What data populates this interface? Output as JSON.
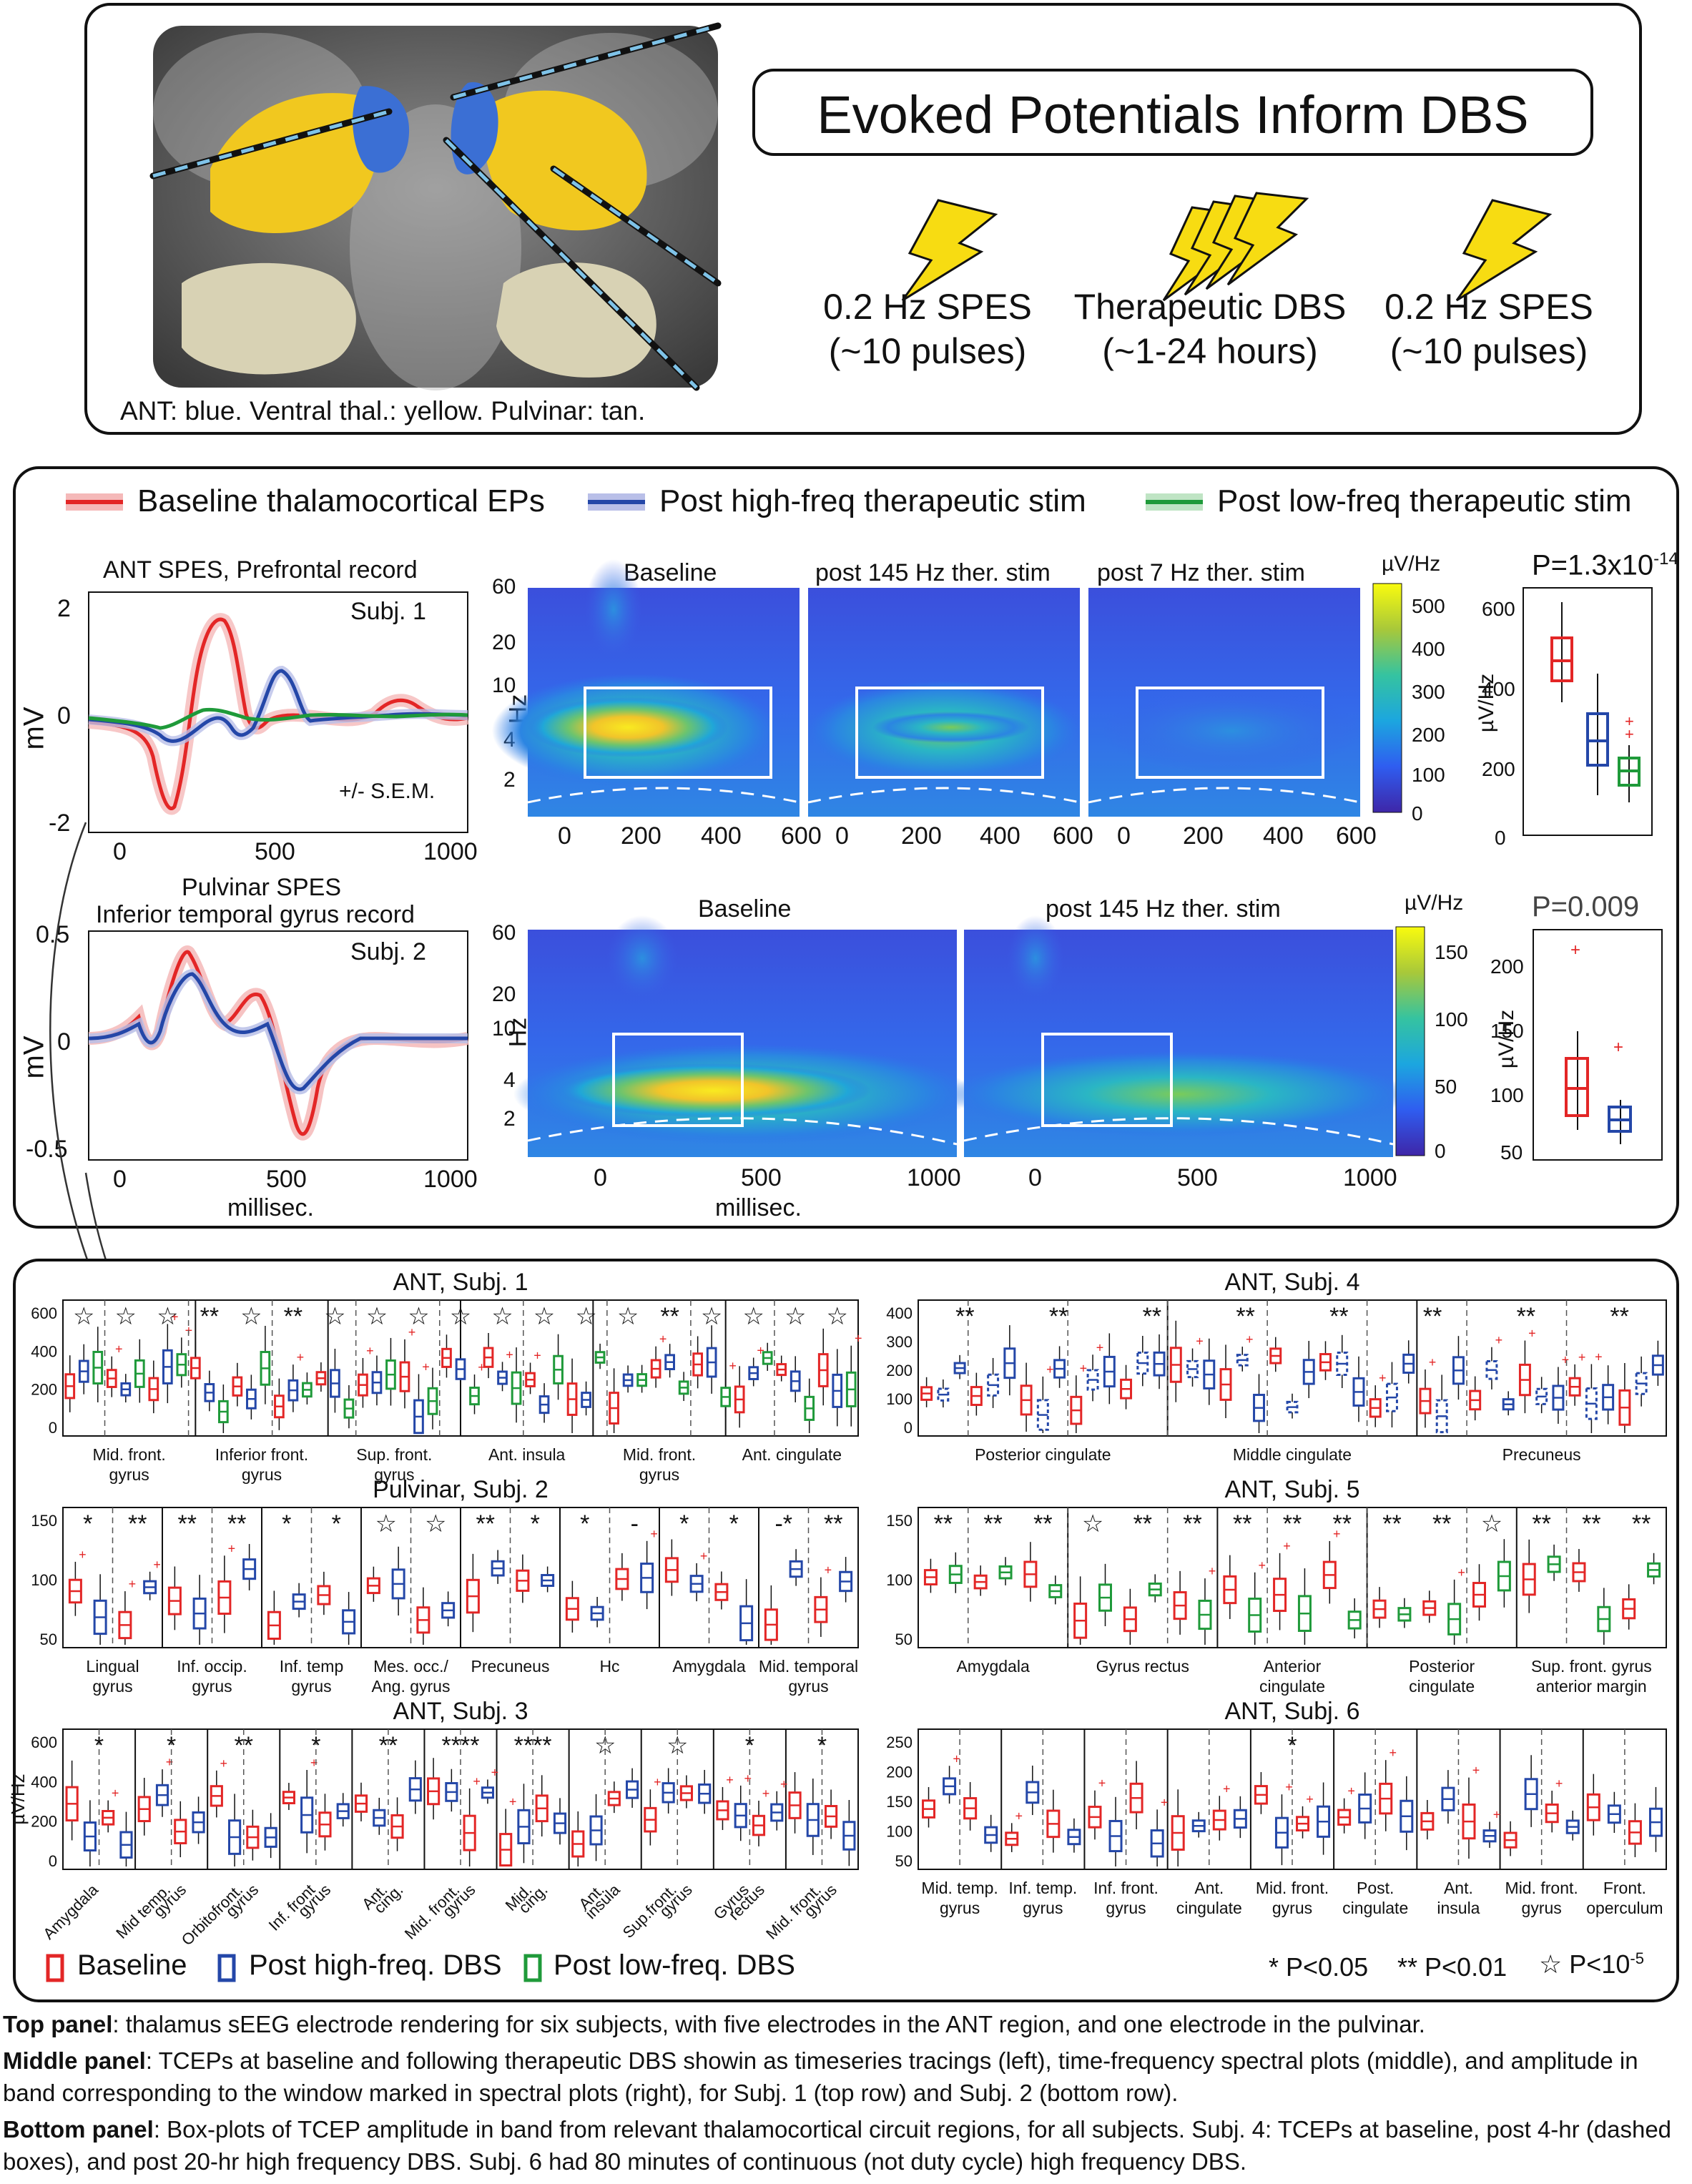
{
  "top": {
    "title": "Evoked Potentials Inform DBS",
    "caption": "ANT: blue. Ventral thal.: yellow. Pulvinar: tan.",
    "steps": [
      {
        "line1": "0.2 Hz SPES",
        "line2": "(~10 pulses)"
      },
      {
        "line1": "Therapeutic DBS",
        "line2": "(~1-24 hours)"
      },
      {
        "line1": "0.2 Hz SPES",
        "line2": "(~10 pulses)"
      }
    ],
    "colors": {
      "ant": "#3b6fd4",
      "ventral": "#f2cc1e",
      "pulvinar": "#d8d2b4",
      "bolt": "#f7dc12"
    }
  },
  "middle": {
    "legend": [
      {
        "label": "Baseline thalamocortical EPs",
        "color": "#e32626"
      },
      {
        "label": "Post high-freq therapeutic stim",
        "color": "#2447a8"
      },
      {
        "label": "Post low-freq therapeutic stim",
        "color": "#1f9a3a"
      }
    ],
    "row1": {
      "ep_title": "ANT SPES, Prefrontal record",
      "subject": "Subj. 1",
      "sem": "+/- S.E.M.",
      "ylabel": "mV",
      "yticks": [
        "2",
        "0",
        "-2"
      ],
      "xticks": [
        "0",
        "500",
        "1000"
      ],
      "tf_titles": [
        "Baseline",
        "post 145 Hz ther. stim",
        "post 7 Hz ther. stim"
      ],
      "tf_ylabel": "Hz",
      "tf_yticks": [
        "60",
        "20",
        "10",
        "4",
        "2"
      ],
      "tf_xticks": [
        "0",
        "200",
        "400",
        "600"
      ],
      "cbar_label": "µV/Hz",
      "cbar_ticks": [
        "500",
        "400",
        "300",
        "200",
        "100",
        "0"
      ],
      "p_main": "P=1.3x10",
      "p_exp": "-14",
      "box_ylabel": "µV/Hz",
      "box_yticks": [
        "600",
        "400",
        "200",
        "0"
      ]
    },
    "row2": {
      "ep_title_1": "Pulvinar SPES",
      "ep_title_2": "Inferior temporal gyrus record",
      "subject": "Subj. 2",
      "ylabel": "mV",
      "yticks": [
        "0.5",
        "0",
        "-0.5"
      ],
      "xticks": [
        "0",
        "500",
        "1000"
      ],
      "xlabel": "millisec.",
      "tf_titles": [
        "Baseline",
        "post 145 Hz ther. stim"
      ],
      "tf_ylabel": "Hz",
      "tf_yticks": [
        "60",
        "20",
        "10",
        "4",
        "2"
      ],
      "tf_xticks": [
        "0",
        "500",
        "1000"
      ],
      "tf_xlabel": "millisec.",
      "cbar_label": "µV/Hz",
      "cbar_ticks": [
        "150",
        "100",
        "50",
        "0"
      ],
      "p_main": "P=0.009",
      "box_ylabel": "µV/Hz",
      "box_yticks": [
        "200",
        "150",
        "100",
        "50"
      ]
    }
  },
  "bottom": {
    "s1": {
      "title": "ANT, Subj. 1",
      "yticks": [
        "600",
        "400",
        "200",
        "0"
      ],
      "marks": [
        "☆",
        "☆",
        "☆",
        "**",
        "☆",
        "**",
        "☆",
        "☆",
        "☆",
        "☆",
        "☆",
        "☆",
        "☆",
        "☆",
        "**",
        "☆",
        "☆",
        "☆",
        "☆"
      ],
      "regions": [
        [
          "Mid. front.",
          "gyrus"
        ],
        [
          "Inferior front.",
          "gyrus"
        ],
        [
          "Sup. front.",
          "gyrus"
        ],
        [
          "Ant. insula",
          ""
        ],
        [
          "Mid. front.",
          "gyrus"
        ],
        [
          "Ant. cingulate",
          ""
        ]
      ]
    },
    "s2": {
      "title": "Pulvinar, Subj. 2",
      "yticks": [
        "150",
        "100",
        "50"
      ],
      "marks": [
        "*",
        "**",
        "**",
        "**",
        "*",
        "*",
        "☆",
        "☆",
        "**",
        "*",
        "*",
        "-",
        "*",
        "*",
        "-*",
        "**"
      ],
      "regions": [
        [
          "Lingual",
          "gyrus"
        ],
        [
          "Inf. occip.",
          "gyrus"
        ],
        [
          "Inf. temp",
          "gyrus"
        ],
        [
          "Mes. occ./",
          "Ang. gyrus"
        ],
        [
          "Precuneus",
          ""
        ],
        [
          "Hc",
          ""
        ],
        [
          "Amygdala",
          ""
        ],
        [
          "Mid. temporal",
          "gyrus"
        ]
      ]
    },
    "s3": {
      "title": "ANT, Subj. 3",
      "ylabel": "µV/Hz",
      "yticks": [
        "600",
        "400",
        "200",
        "0"
      ],
      "marks": [
        "*",
        "*",
        "**",
        "*",
        "**",
        "****",
        "****",
        "☆",
        "☆",
        "*",
        "*"
      ],
      "regions": [
        [
          "Amygdala",
          ""
        ],
        [
          "Mid temp.",
          "gyrus"
        ],
        [
          "Orbitofront.",
          "gyrus"
        ],
        [
          "Inf. front",
          "gyrus"
        ],
        [
          "Ant.",
          "cing."
        ],
        [
          "Mid. front.",
          "gyrus"
        ],
        [
          "Mid.",
          "cing."
        ],
        [
          "Ant.",
          "insula"
        ],
        [
          "Sup.front.",
          "gyrus"
        ],
        [
          "Gyrus",
          "rectus"
        ],
        [
          "Mid. front.",
          "gyrus"
        ]
      ]
    },
    "s4": {
      "title": "ANT, Subj. 4",
      "yticks": [
        "400",
        "300",
        "200",
        "100",
        "0"
      ],
      "marks": [
        "**",
        "**",
        "**",
        "**",
        "**",
        "**",
        "**",
        "**"
      ],
      "regions": [
        [
          "Posterior cingulate",
          ""
        ],
        [
          "Middle cingulate",
          ""
        ],
        [
          "Precuneus",
          ""
        ]
      ]
    },
    "s5": {
      "title": "ANT, Subj. 5",
      "yticks": [
        "150",
        "100",
        "50"
      ],
      "marks": [
        "**",
        "**",
        "**",
        "☆",
        "**",
        "**",
        "**",
        "**",
        "**",
        "**",
        "**",
        "☆",
        "**",
        "**",
        "**"
      ],
      "regions": [
        [
          "Amygdala",
          ""
        ],
        [
          "Gyrus rectus",
          ""
        ],
        [
          "Anterior",
          "cingulate"
        ],
        [
          "Posterior",
          "cingulate"
        ],
        [
          "Sup. front. gyrus",
          "anterior margin"
        ]
      ]
    },
    "s6": {
      "title": "ANT, Subj. 6",
      "yticks": [
        "250",
        "200",
        "150",
        "100",
        "50"
      ],
      "marks": [
        "*"
      ],
      "regions": [
        [
          "Mid. temp.",
          "gyrus"
        ],
        [
          "Inf. temp.",
          "gyrus"
        ],
        [
          "Inf. front.",
          "gyrus"
        ],
        [
          "Ant.",
          "cingulate"
        ],
        [
          "Mid. front.",
          "gyrus"
        ],
        [
          "Post.",
          "cingulate"
        ],
        [
          "Ant.",
          "insula"
        ],
        [
          "Mid. front.",
          "gyrus"
        ],
        [
          "Front.",
          "operculum"
        ]
      ]
    },
    "legend": [
      {
        "label": "Baseline",
        "color": "#e32626"
      },
      {
        "label": "Post high-freq. DBS",
        "color": "#2447a8"
      },
      {
        "label": "Post low-freq. DBS",
        "color": "#1f9a3a"
      }
    ],
    "sig": {
      "p1": "* P<0.05",
      "p2": "** P<0.01",
      "p3_star": "☆",
      "p3": "P<10",
      "p3_exp": "-5"
    }
  },
  "caption": {
    "top_label": "Top panel",
    "top_text": ": thalamus sEEG electrode rendering for six subjects, with five electrodes in the ANT region, and one electrode in the pulvinar.",
    "mid_label": "Middle panel",
    "mid_text": ": TCEPs at baseline and following therapeutic DBS showin as timeseries tracings (left), time-frequency spectral plots (middle), and amplitude in band corresponding to the window marked in spectral plots (right), for Subj. 1 (top row) and Subj. 2 (bottom row).",
    "bot_label": "Bottom panel",
    "bot_text": ": Box-plots of TCEP amplitude in band from relevant thalamocortical circuit regions, for all subjects. Subj. 4: TCEPs at baseline, post 4-hr (dashed boxes), and post 20-hr high frequency DBS. Subj. 6 had 80 minutes of continuous (not duty cycle) high frequency DBS."
  }
}
